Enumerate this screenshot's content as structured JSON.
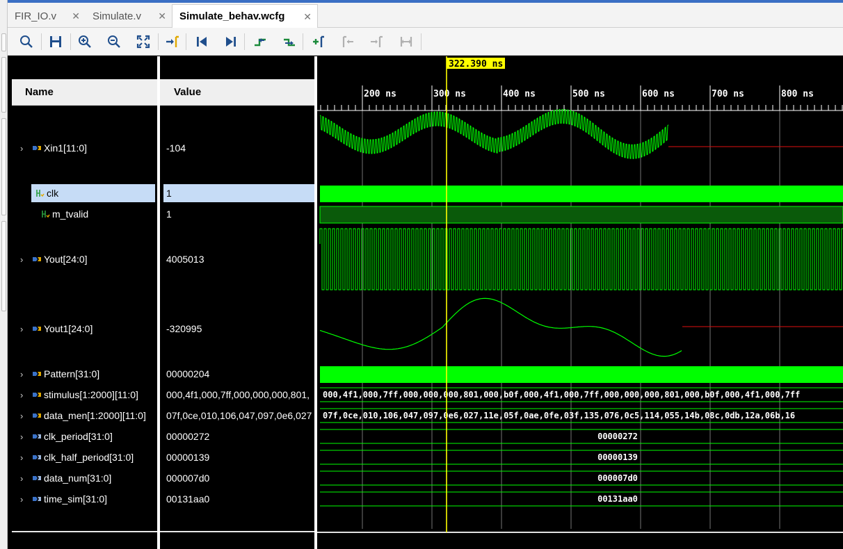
{
  "tabs": [
    {
      "label": "FIR_IO.v"
    },
    {
      "label": "Simulate.v"
    },
    {
      "label": "Simulate_behav.wcfg"
    }
  ],
  "toolbar": {
    "icons": [
      "search-icon",
      "save-icon",
      "zoom-in-icon",
      "zoom-out-icon",
      "zoom-fit-icon",
      "go-to-cursor-icon",
      "go-to-time-0-icon",
      "go-to-last-time-icon",
      "previous-transition-icon",
      "next-transition-icon",
      "add-marker-icon",
      "previous-marker-icon",
      "next-marker-icon",
      "swap-cursors-icon"
    ]
  },
  "columns": {
    "name": "Name",
    "value": "Value"
  },
  "cursor": {
    "label": "322.390 ns",
    "color": "#ffff00"
  },
  "timeline": {
    "ticks": [
      "200 ns",
      "300 ns",
      "400 ns",
      "500 ns",
      "600 ns",
      "700 ns",
      "800 ns"
    ]
  },
  "signals": [
    {
      "name": "Xin1[11:0]",
      "value": "-104",
      "kind": "bus",
      "expandable": true
    },
    {
      "name": "clk",
      "value": "1",
      "kind": "bit",
      "expandable": false,
      "selected": true
    },
    {
      "name": "m_tvalid",
      "value": "1",
      "kind": "bit",
      "expandable": false
    },
    {
      "name": "Yout[24:0]",
      "value": "4005013",
      "kind": "bus",
      "expandable": true
    },
    {
      "name": "Yout1[24:0]",
      "value": "-320995",
      "kind": "bus",
      "expandable": true
    },
    {
      "name": "Pattern[31:0]",
      "value": "00000204",
      "kind": "bus",
      "expandable": true
    },
    {
      "name": "stimulus[1:2000][11:0]",
      "value": "000,4f1,000,7ff,000,000,000,801,",
      "kind": "bus",
      "expandable": true
    },
    {
      "name": "data_men[1:2000][11:0]",
      "value": "07f,0ce,010,106,047,097,0e6,027",
      "kind": "bus",
      "expandable": true
    },
    {
      "name": "clk_period[31:0]",
      "value": "00000272",
      "kind": "param",
      "expandable": true
    },
    {
      "name": "clk_half_period[31:0]",
      "value": "00000139",
      "kind": "param",
      "expandable": true
    },
    {
      "name": "data_num[31:0]",
      "value": "000007d0",
      "kind": "param",
      "expandable": true
    },
    {
      "name": "time_sim[31:0]",
      "value": "00131aa0",
      "kind": "param",
      "expandable": true
    }
  ],
  "wave_text": {
    "stimulus": "000,4f1,000,7ff,000,000,000,801,000,b0f,000,4f1,000,7ff,000,000,000,801,000,b0f,000,4f1,000,7ff",
    "data_men": "07f,0ce,010,106,047,097,0e6,027,11e,05f,0ae,0fe,03f,135,076,0c5,114,055,14b,08c,0db,12a,06b,16",
    "clk_period": "00000272",
    "clk_half_period": "00000139",
    "data_num": "000007d0",
    "time_sim": "00131aa0"
  },
  "colors": {
    "wave": "#00ff00",
    "wave_dim": "#0a5a0a",
    "idle": "#e01010",
    "cursor": "#ffff00",
    "selection": "#c6dcf6"
  }
}
